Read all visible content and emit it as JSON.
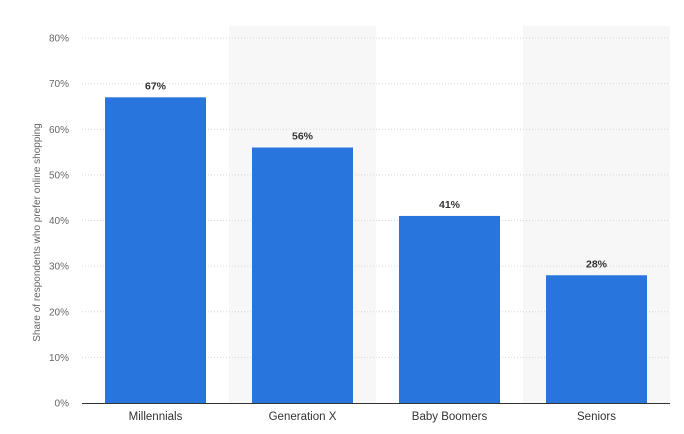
{
  "chart_data": {
    "type": "bar",
    "title": "",
    "xlabel": "",
    "ylabel": "Share of respondents who prefer online shopping",
    "categories": [
      "Millennials",
      "Generation X",
      "Baby Boomers",
      "Seniors"
    ],
    "values": [
      67,
      56,
      41,
      28
    ],
    "data_labels": [
      "67%",
      "56%",
      "41%",
      "28%"
    ],
    "ylim": [
      0,
      80
    ],
    "yticks": [
      0,
      10,
      20,
      30,
      40,
      50,
      60,
      70,
      80
    ],
    "ytick_labels": [
      "0%",
      "10%",
      "20%",
      "30%",
      "40%",
      "50%",
      "60%",
      "70%",
      "80%"
    ],
    "grid": true,
    "legend": "none",
    "bar_color": "#2876dd",
    "band_color": "#f7f7f7",
    "grid_color": "#d6d6d6"
  }
}
